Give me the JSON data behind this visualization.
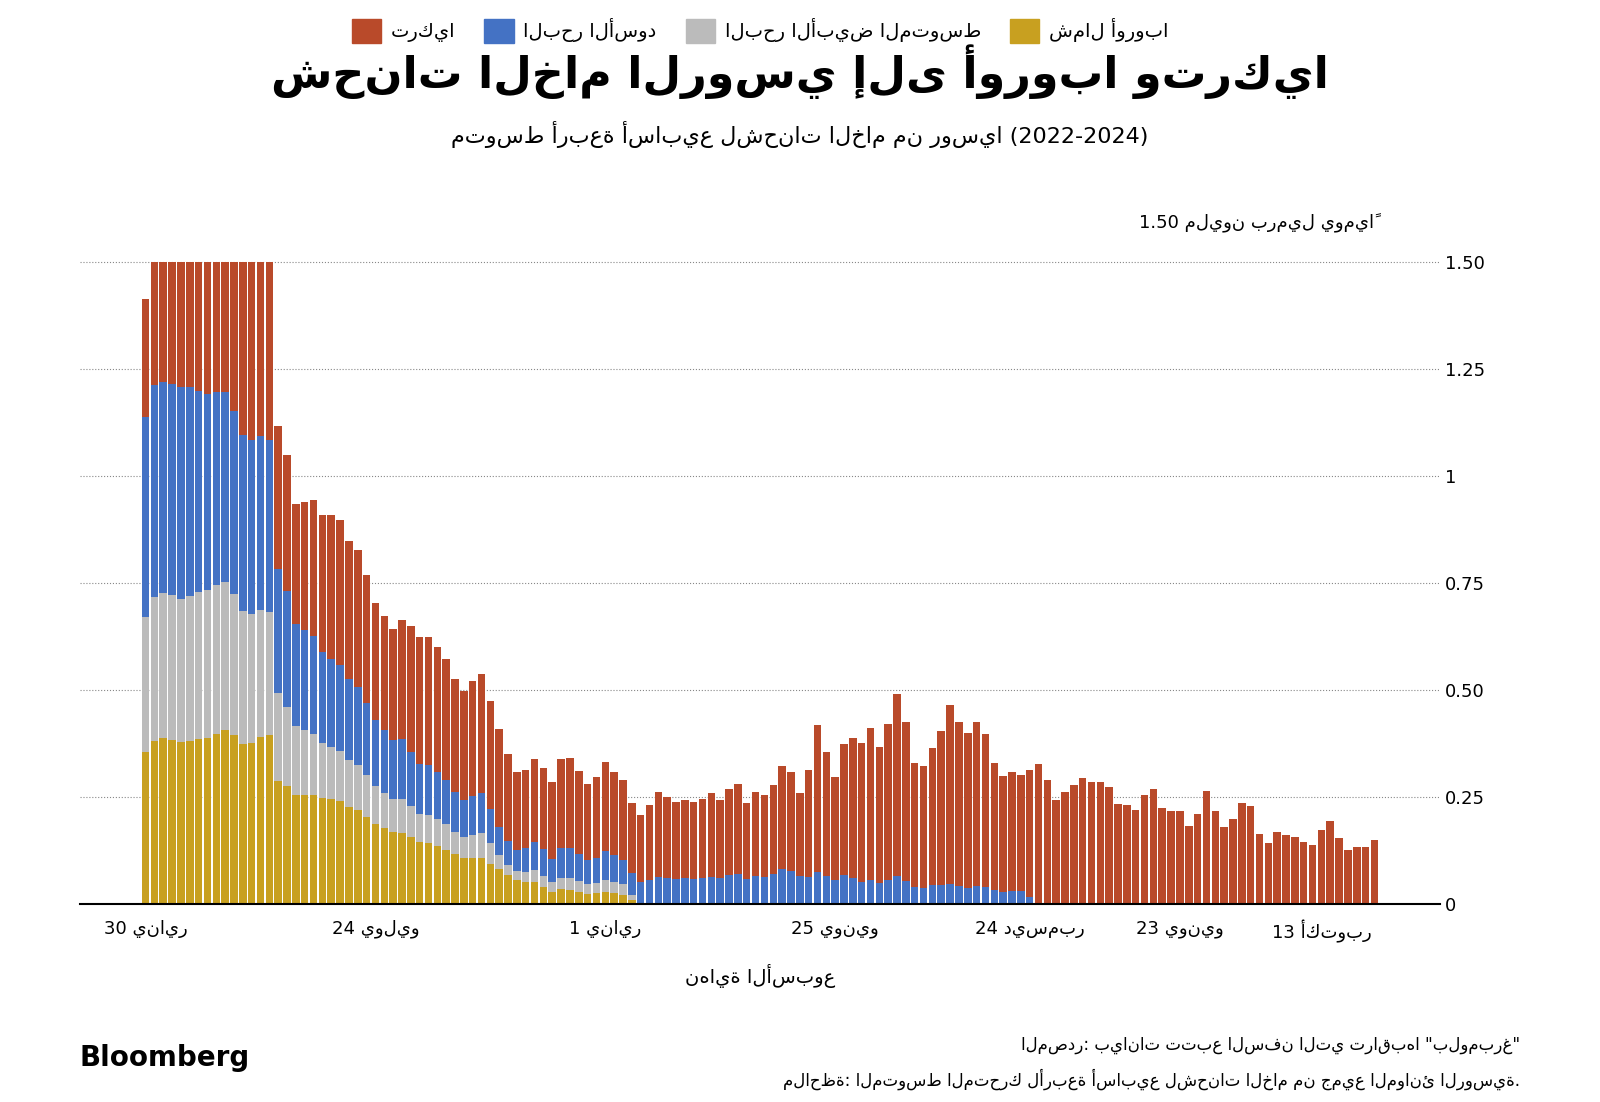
{
  "title": "شحنات الخام الروسي إلى أوروبا وتركيا",
  "subtitle": "متوسط أربعة أسابيع لشحنات الخام من روسيا (2022-2024)",
  "xlabel": "نهاية الأسبوع",
  "ylabel": "1.50 مليون برميل يومياً",
  "source_text": "المصدر: بيانات تتبع السفن التي تراقبها \"بلومبرغ\"",
  "note_text": "ملاحظة: المتوسط المتحرك لأربعة أسابيع لشحنات الخام من جميع الموانئ الروسية.",
  "legend_labels": [
    "شمال أوروبا",
    "البحر الأبيض المتوسط",
    "البحر الأسود",
    "تركيا"
  ],
  "colors": [
    "#C8A020",
    "#BBBBBB",
    "#4472C4",
    "#B94A2A"
  ],
  "background_color": "#FFFFFF",
  "yticks": [
    0,
    0.25,
    0.5,
    0.75,
    1.0,
    1.25,
    1.5
  ],
  "xtick_labels": [
    "30 يناير",
    "24 يوليو",
    "1 يناير",
    "25 يونيو",
    "24 ديسمبر",
    "23 يونيو",
    "13 أكتوبر"
  ],
  "ylim": [
    0,
    1.65
  ]
}
